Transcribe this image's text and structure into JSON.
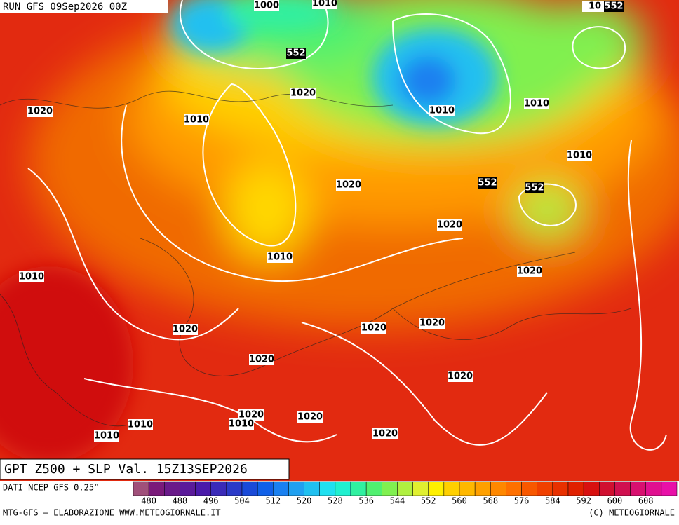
{
  "header": {
    "run": "RUN GFS 09Sep2026 00Z"
  },
  "map": {
    "isobar_labels": [
      1000,
      1010,
      10,
      1020,
      1020,
      1010,
      1010,
      1010,
      1010,
      1020,
      1020,
      1010,
      1010,
      1020,
      1020,
      1020,
      1020,
      1020,
      1020,
      1020,
      1020,
      1010,
      1010,
      1010,
      1020
    ],
    "z500_labels": [
      552,
      552,
      552,
      552
    ]
  },
  "footer": {
    "title": "GPT Z500 + SLP Val. 15Z13SEP2026",
    "source": "DATI NCEP GFS 0.25°",
    "credit_left": "MTG-GFS — ELABORAZIONE WWW.METEOGIORNALE.IT",
    "credit_right": "(C) METEOGIORNALE"
  },
  "colorbar": {
    "ticks": [
      480,
      488,
      496,
      504,
      512,
      520,
      528,
      536,
      544,
      552,
      560,
      568,
      576,
      584,
      592,
      600,
      608
    ],
    "colors": [
      "#a0507a",
      "#7a1a7a",
      "#6a1a8a",
      "#5a1a9a",
      "#4a1aaa",
      "#3a2ab8",
      "#2a3ac8",
      "#1a4ad8",
      "#1060e8",
      "#1a80f0",
      "#20a0f0",
      "#20c0f0",
      "#20e0f0",
      "#20f0d0",
      "#30f0a0",
      "#50f070",
      "#80f050",
      "#b0f040",
      "#e0f030",
      "#fff000",
      "#ffd000",
      "#ffb800",
      "#ffa000",
      "#ff8800",
      "#ff7000",
      "#f85800",
      "#f04000",
      "#e83000",
      "#e02000",
      "#d81010",
      "#d01030",
      "#d01050",
      "#d81070",
      "#e01090",
      "#e810a8"
    ]
  }
}
